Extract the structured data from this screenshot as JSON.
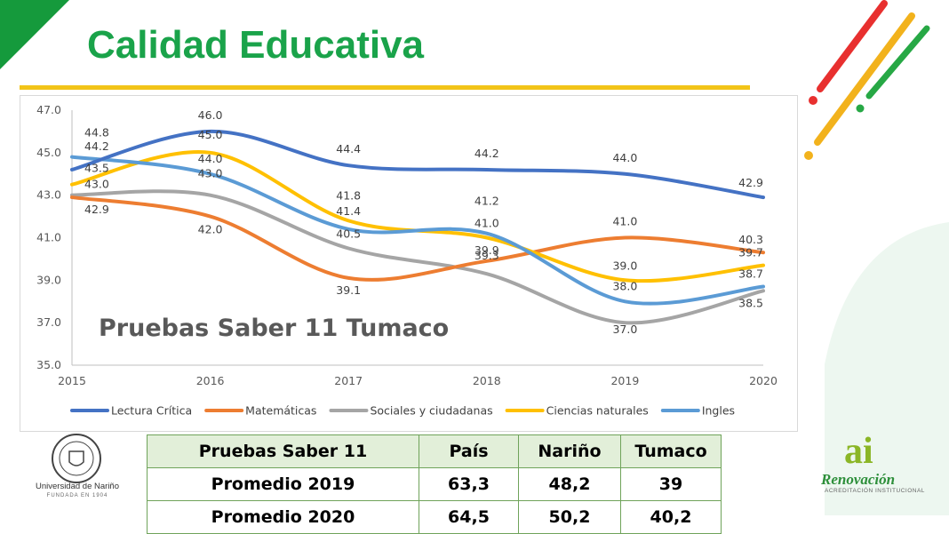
{
  "header": {
    "title": "Calidad Educativa"
  },
  "chart_data": {
    "type": "line",
    "title": "Pruebas Saber 11 Tumaco",
    "x": [
      "2015",
      "2016",
      "2017",
      "2018",
      "2019",
      "2020"
    ],
    "ylim": [
      35.0,
      47.0
    ],
    "yticks": [
      "35.0",
      "37.0",
      "39.0",
      "41.0",
      "43.0",
      "45.0",
      "47.0"
    ],
    "grid": false,
    "legend_position": "bottom",
    "series": [
      {
        "name": "Lectura Crítica",
        "color": "#4472c4",
        "values": [
          44.2,
          46.0,
          44.4,
          44.2,
          44.0,
          42.9
        ],
        "labels": [
          "44.2",
          "46.0",
          "44.4",
          "44.2",
          "44.0",
          "42.9"
        ]
      },
      {
        "name": "Matemáticas",
        "color": "#ed7d31",
        "values": [
          42.9,
          42.0,
          39.1,
          39.9,
          41.0,
          40.3
        ],
        "labels": [
          "42.9",
          "42.0",
          "39.1",
          "39.9",
          "41.0",
          "40.3"
        ]
      },
      {
        "name": "Sociales y ciudadanas",
        "color": "#a5a5a5",
        "values": [
          43.0,
          43.0,
          40.5,
          39.3,
          37.0,
          38.5
        ],
        "labels": [
          "43.0",
          "43.0",
          "40.5",
          "39.3",
          "37.0",
          "38.5"
        ]
      },
      {
        "name": "Ciencias naturales",
        "color": "#ffc000",
        "values": [
          43.5,
          45.0,
          41.8,
          41.0,
          39.0,
          39.7
        ],
        "labels": [
          "43.5",
          "45.0",
          "41.8",
          "41.0",
          "39.0",
          "39.7"
        ]
      },
      {
        "name": "Ingles",
        "color": "#5b9bd5",
        "values": [
          44.8,
          44.0,
          41.4,
          41.2,
          38.0,
          38.7
        ],
        "labels": [
          "44.8",
          "44.0",
          "41.4",
          "41.2",
          "38.0",
          "38.7"
        ]
      }
    ]
  },
  "table": {
    "headers": [
      "Pruebas Saber 11",
      "País",
      "Nariño",
      "Tumaco"
    ],
    "rows": [
      [
        "Promedio 2019",
        "63,3",
        "48,2",
        "39"
      ],
      [
        "Promedio 2020",
        "64,5",
        "50,2",
        "40,2"
      ]
    ]
  },
  "logos": {
    "left_name": "Universidad de Nariño",
    "left_sub": "FUNDADA EN 1904",
    "right_mark": "ai",
    "right_name": "Renovación",
    "right_sub": "ACREDITACIÓN INSTITUCIONAL"
  }
}
